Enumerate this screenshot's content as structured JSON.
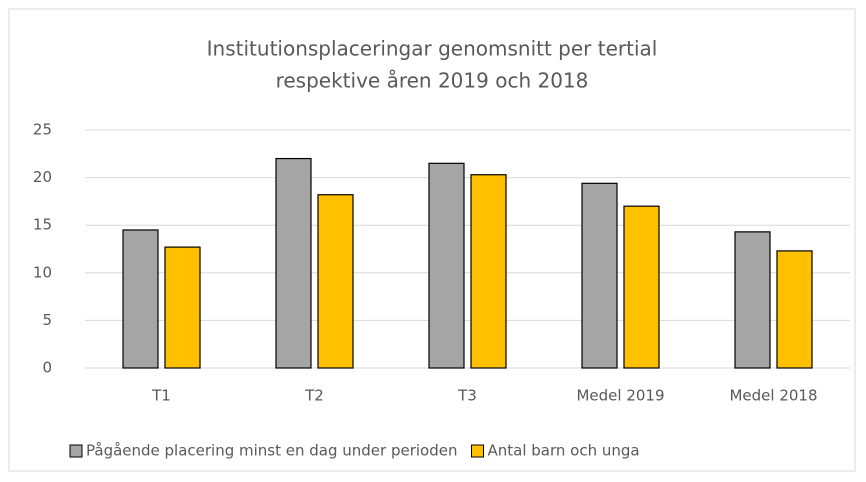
{
  "chart_data": {
    "type": "bar",
    "title": [
      "Institutionsplaceringar genomsnitt per tertial",
      "respektive åren 2019 och 2018"
    ],
    "categories": [
      "T1",
      "T2",
      "T3",
      "Medel 2019",
      "Medel 2018"
    ],
    "series": [
      {
        "name": "Pågående placering minst en dag under perioden",
        "color": "#a5a5a5",
        "values": [
          14.5,
          22.0,
          21.5,
          19.4,
          14.3
        ]
      },
      {
        "name": "Antal barn och unga",
        "color": "#ffc000",
        "values": [
          12.7,
          18.2,
          20.3,
          17.0,
          12.3
        ]
      }
    ],
    "ylim": [
      0,
      25
    ],
    "yticks": [
      0,
      5,
      10,
      15,
      20,
      25
    ],
    "grid": true,
    "legend": "bottom"
  }
}
